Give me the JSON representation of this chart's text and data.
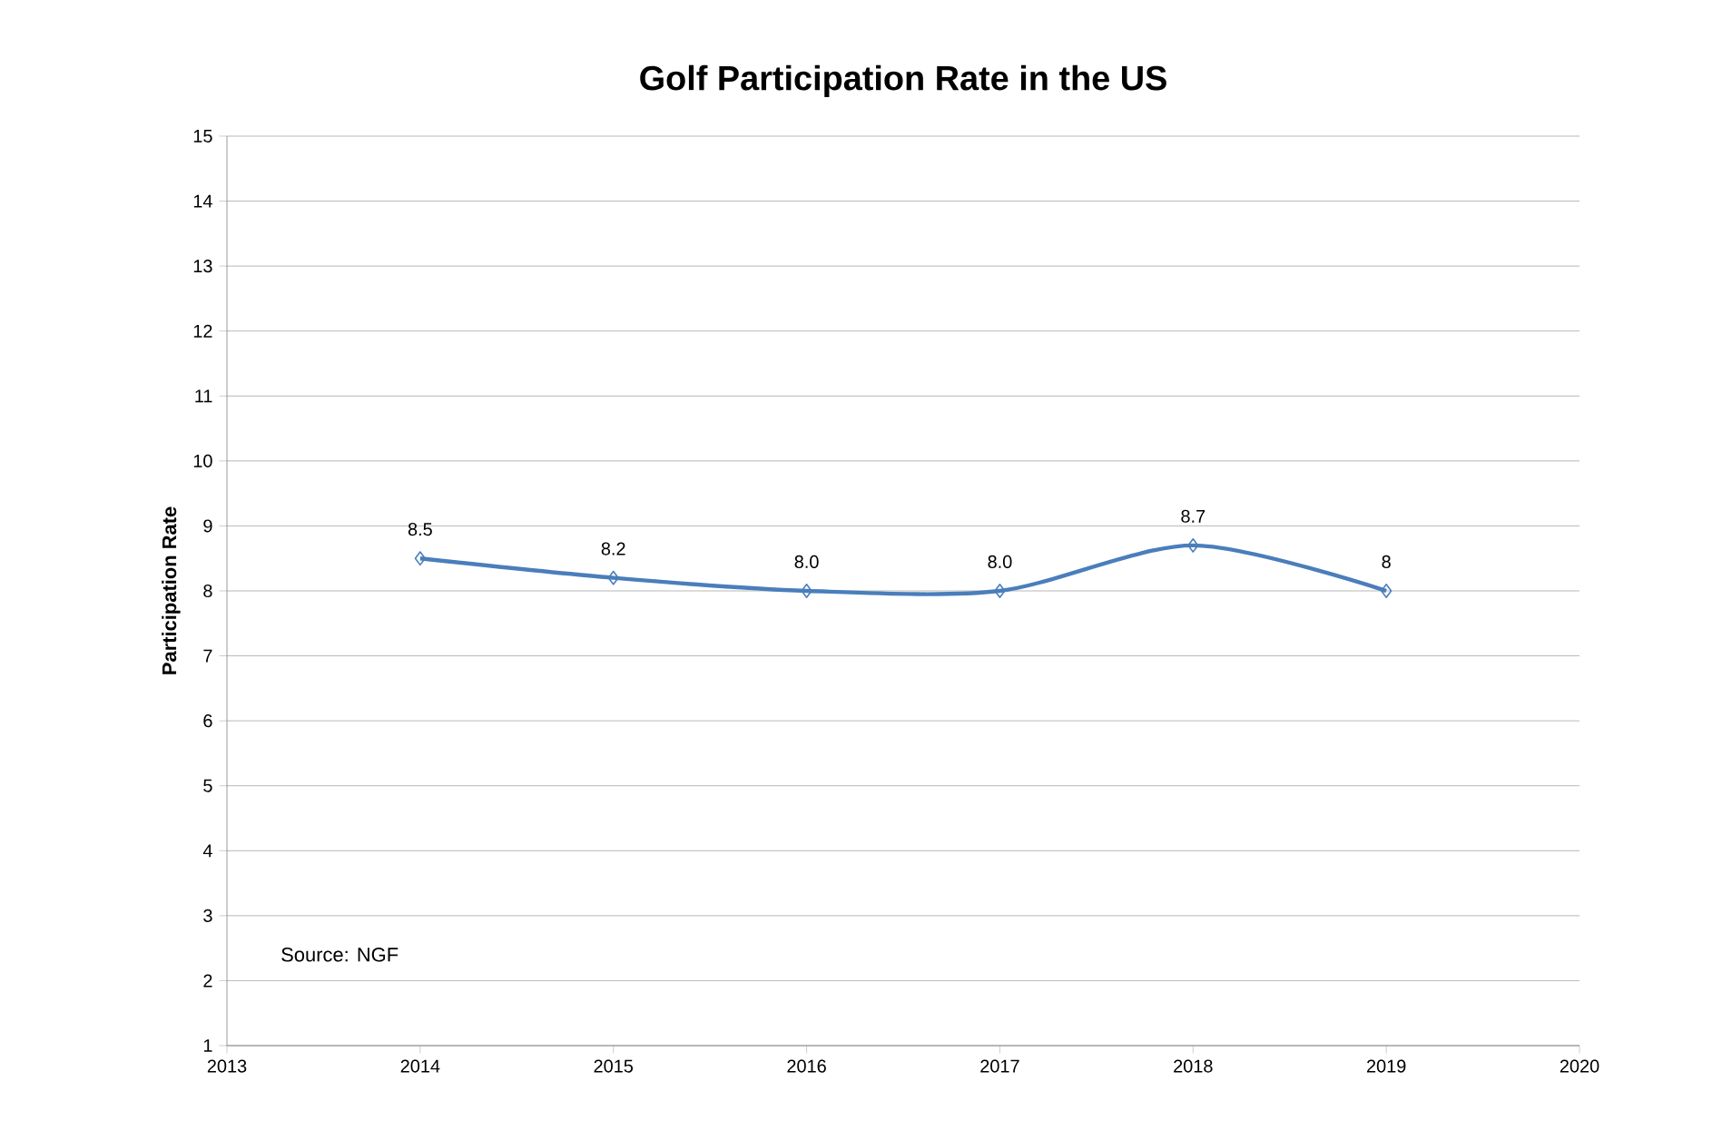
{
  "chart_data": {
    "type": "line",
    "title": "Golf Participation Rate in the US",
    "ylabel": "Participation  Rate",
    "x": [
      2014,
      2015,
      2016,
      2017,
      2018,
      2019
    ],
    "values": [
      8.5,
      8.2,
      8.0,
      8.0,
      8.7,
      8
    ],
    "value_labels": [
      "8.5",
      "8.2",
      "8.0",
      "8.0",
      "8.7",
      "8"
    ],
    "color": "#4a7ebb",
    "marker": "diamond",
    "line_style": "solid",
    "grid": "y",
    "xlim": [
      2013,
      2020
    ],
    "xticks": [
      2013,
      2014,
      2015,
      2016,
      2017,
      2018,
      2019,
      2020
    ],
    "ylim": [
      1,
      15
    ],
    "yticks": [
      1,
      2,
      3,
      4,
      5,
      6,
      7,
      8,
      9,
      10,
      11,
      12,
      13,
      14,
      15
    ],
    "annotations": [
      "Source: NGF"
    ]
  }
}
